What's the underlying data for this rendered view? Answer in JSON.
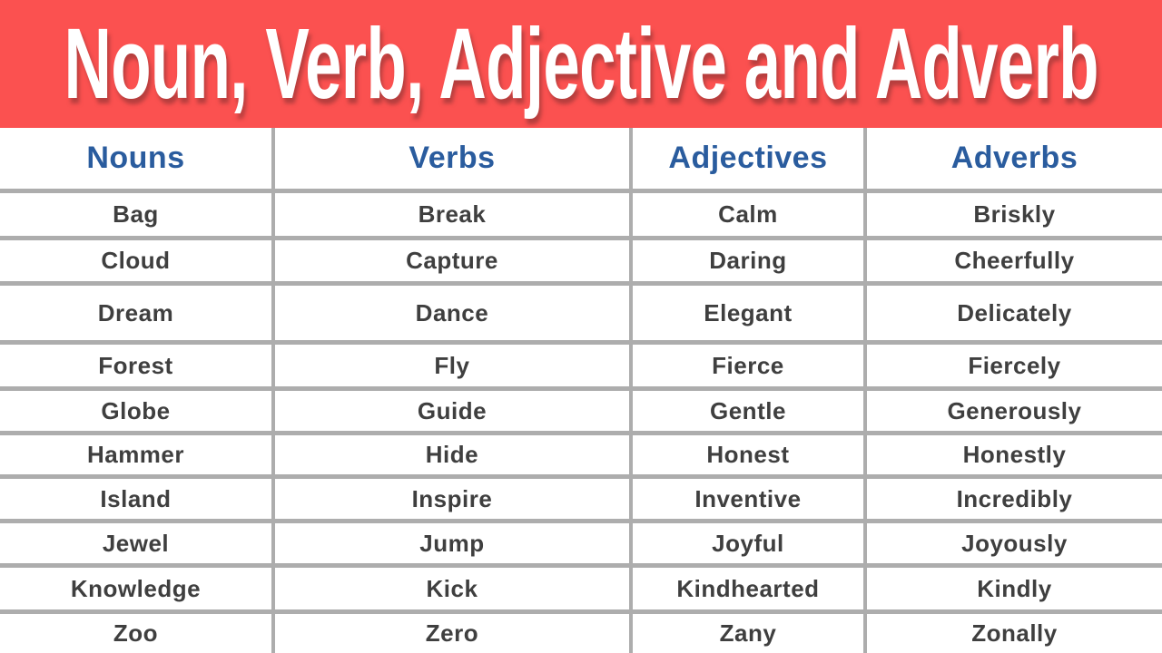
{
  "banner": {
    "title": "Noun, Verb, Adjective and Adverb",
    "background_color": "#fb5150",
    "title_color": "#ffffff"
  },
  "table": {
    "header_text_color": "#2a5c9e",
    "cell_text_color": "#3f3f3f",
    "border_color": "#adadad",
    "headers": [
      "Nouns",
      "Verbs",
      "Adjectives",
      "Adverbs"
    ],
    "rows": [
      [
        "Bag",
        "Break",
        "Calm",
        "Briskly"
      ],
      [
        "Cloud",
        "Capture",
        "Daring",
        "Cheerfully"
      ],
      [
        "Dream",
        "Dance",
        "Elegant",
        "Delicately"
      ],
      [
        "Forest",
        "Fly",
        "Fierce",
        "Fiercely"
      ],
      [
        "Globe",
        "Guide",
        "Gentle",
        "Generously"
      ],
      [
        "Hammer",
        "Hide",
        "Honest",
        "Honestly"
      ],
      [
        "Island",
        "Inspire",
        "Inventive",
        "Incredibly"
      ],
      [
        "Jewel",
        "Jump",
        "Joyful",
        "Joyously"
      ],
      [
        "Knowledge",
        "Kick",
        "Kindhearted",
        "Kindly"
      ],
      [
        "Zoo",
        "Zero",
        "Zany",
        "Zonally"
      ]
    ]
  }
}
